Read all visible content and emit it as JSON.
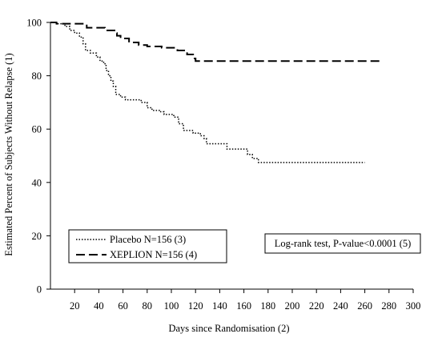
{
  "chart_data": {
    "type": "line",
    "xlabel": "Days since Randomisation (2)",
    "ylabel": "Estimated Percent of Subjects Without Relapse (1)",
    "xlim": [
      0,
      300
    ],
    "ylim": [
      0,
      100
    ],
    "x_ticks": [
      20,
      40,
      60,
      80,
      100,
      120,
      140,
      160,
      180,
      200,
      220,
      240,
      260,
      280,
      300
    ],
    "y_ticks": [
      0,
      20,
      40,
      60,
      80,
      100
    ],
    "grid": false,
    "legend_position": "bottom-left",
    "annotation": "Log-rank test, P-value<0.0001 (5)",
    "series": [
      {
        "name": "Placebo N=156 (3)",
        "style": "dotted",
        "color": "#000000",
        "steps": [
          [
            0,
            100
          ],
          [
            5,
            99.5
          ],
          [
            12,
            98.5
          ],
          [
            16,
            97
          ],
          [
            20,
            96
          ],
          [
            24,
            94.5
          ],
          [
            27,
            92
          ],
          [
            29,
            89.5
          ],
          [
            33,
            88.5
          ],
          [
            38,
            87
          ],
          [
            41,
            85.5
          ],
          [
            44,
            84.5
          ],
          [
            46,
            82
          ],
          [
            48,
            80
          ],
          [
            50,
            78
          ],
          [
            52,
            76
          ],
          [
            54,
            73
          ],
          [
            58,
            72
          ],
          [
            62,
            71
          ],
          [
            75,
            70
          ],
          [
            80,
            68
          ],
          [
            84,
            67
          ],
          [
            90,
            66.5
          ],
          [
            94,
            65.5
          ],
          [
            102,
            64.5
          ],
          [
            106,
            62
          ],
          [
            110,
            59.5
          ],
          [
            118,
            58.5
          ],
          [
            124,
            57.5
          ],
          [
            127,
            56.5
          ],
          [
            129,
            54.5
          ],
          [
            146,
            52.5
          ],
          [
            163,
            50.5
          ],
          [
            167,
            49
          ],
          [
            172,
            47.5
          ],
          [
            260,
            47.5
          ]
        ]
      },
      {
        "name": "XEPLION N=156 (4)",
        "style": "dashed",
        "color": "#000000",
        "steps": [
          [
            0,
            100
          ],
          [
            5,
            99.5
          ],
          [
            30,
            98
          ],
          [
            45,
            97
          ],
          [
            53,
            96
          ],
          [
            55,
            95
          ],
          [
            58,
            94
          ],
          [
            65,
            92.5
          ],
          [
            73,
            91.5
          ],
          [
            80,
            91
          ],
          [
            92,
            90.5
          ],
          [
            105,
            89.5
          ],
          [
            113,
            88
          ],
          [
            118,
            86.5
          ],
          [
            120,
            85.5
          ],
          [
            272,
            85.5
          ]
        ]
      }
    ]
  }
}
